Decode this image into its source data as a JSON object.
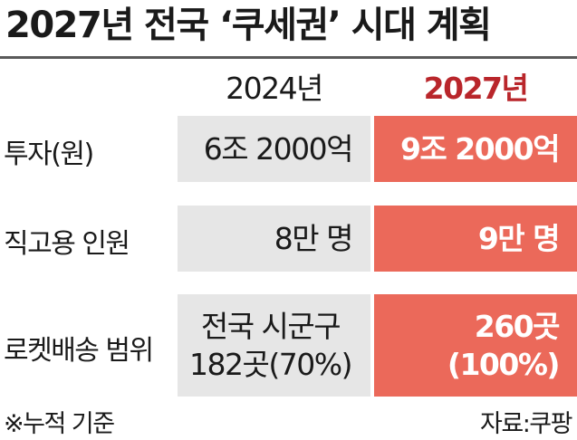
{
  "title": "2027년 전국 ‘쿠세권’ 시대 계획",
  "columns": {
    "current": "2024년",
    "target": "2027년"
  },
  "rows": [
    {
      "label": "투자(원)",
      "current": [
        "6조 2000억"
      ],
      "target": [
        "9조 2000억"
      ]
    },
    {
      "label": "직고용 인원",
      "current": [
        "8만 명"
      ],
      "target": [
        "9만 명"
      ]
    },
    {
      "label": "로켓배송 범위",
      "current": [
        "전국 시군구",
        "182곳(70%)"
      ],
      "target": [
        "260곳",
        "(100%)"
      ]
    }
  ],
  "footnote": "※누적 기준",
  "source": "자료:쿠팡",
  "colors": {
    "accent_text": "#b9262b",
    "target_fill": "#eb695a",
    "current_fill": "#e6e6e6",
    "rule": "#5a5a5a"
  }
}
